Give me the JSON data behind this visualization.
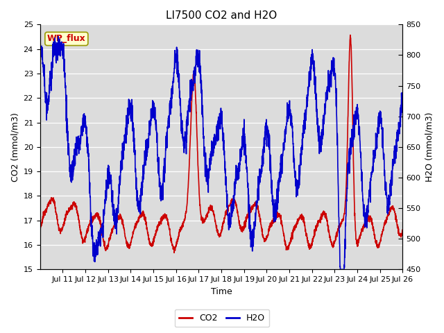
{
  "title": "LI7500 CO2 and H2O",
  "xlabel": "Time",
  "ylabel_left": "CO2 (mmol/m3)",
  "ylabel_right": "H2O (mmol/m3)",
  "co2_label": "CO2",
  "h2o_label": "H2O",
  "co2_color": "#cc0000",
  "h2o_color": "#0000cc",
  "co2_ylim": [
    15.0,
    25.0
  ],
  "h2o_ylim": [
    450,
    850
  ],
  "co2_yticks": [
    15.0,
    16.0,
    17.0,
    18.0,
    19.0,
    20.0,
    21.0,
    22.0,
    23.0,
    24.0,
    25.0
  ],
  "h2o_yticks": [
    450,
    500,
    550,
    600,
    650,
    700,
    750,
    800,
    850
  ],
  "x_tick_labels": [
    "Jul 11",
    "Jul 12",
    "Jul 13",
    "Jul 14",
    "Jul 15",
    "Jul 16",
    "Jul 17",
    "Jul 18",
    "Jul 19",
    "Jul 20",
    "Jul 21",
    "Jul 22",
    "Jul 23",
    "Jul 24",
    "Jul 25",
    "Jul 26"
  ],
  "annotation_text": "WP_flux",
  "plot_bg_color": "#dcdcdc",
  "title_fontsize": 11,
  "axis_fontsize": 9,
  "tick_fontsize": 8,
  "legend_fontsize": 9,
  "line_width": 1.2
}
